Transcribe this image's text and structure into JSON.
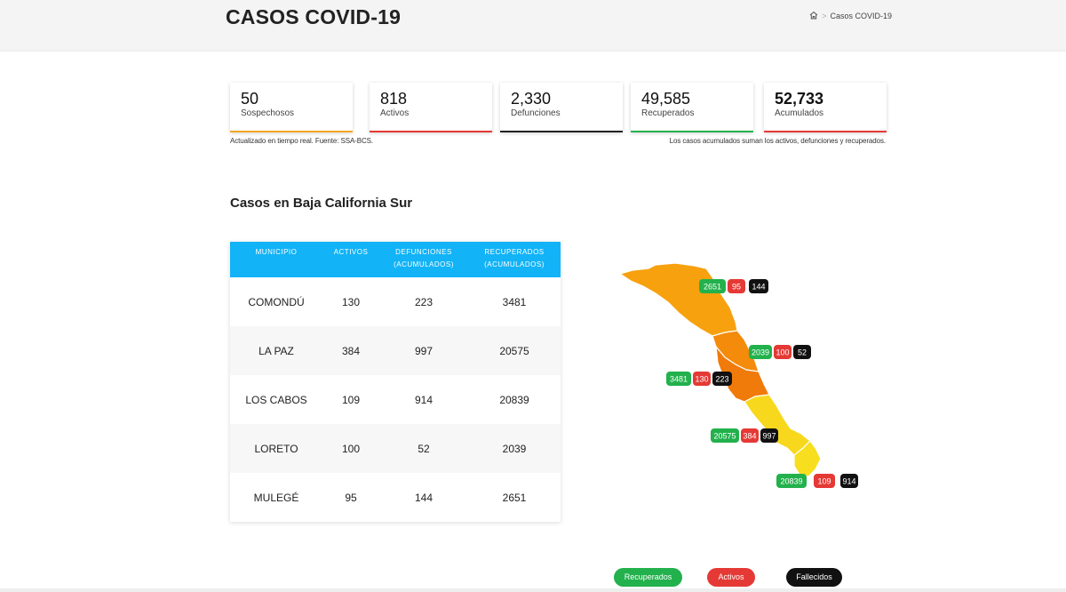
{
  "header": {
    "title": "CASOS COVID-19",
    "breadcrumb_current": "Casos COVID-19",
    "home_icon": "home-icon"
  },
  "stats": [
    {
      "value": "50",
      "label": "Sospechosos",
      "color": "#f5a623"
    },
    {
      "value": "818",
      "label": "Activos",
      "color": "#e53935"
    },
    {
      "value": "2,330",
      "label": "Defunciones",
      "color": "#222222"
    },
    {
      "value": "49,585",
      "label": "Recuperados",
      "color": "#22b14c"
    },
    {
      "value": "52,733",
      "label": "Acumulados",
      "color": "#e53935"
    }
  ],
  "notes": {
    "left": "Actualizado en tiempo real. Fuente: SSA-BCS.",
    "right": "Los casos acumulados suman los activos, defunciones y recuperados."
  },
  "section_title": "Casos en Baja California Sur",
  "table": {
    "headers": [
      {
        "line1": "MUNICIPIO",
        "line2": ""
      },
      {
        "line1": "ACTIVOS",
        "line2": ""
      },
      {
        "line1": "DEFUNCIONES",
        "line2": "(ACUMULADOS)"
      },
      {
        "line1": "RECUPERADOS",
        "line2": "(ACUMULADOS)"
      }
    ],
    "rows": [
      {
        "municipio": "COMONDÚ",
        "activos": "130",
        "defunciones": "223",
        "recuperados": "3481"
      },
      {
        "municipio": "LA PAZ",
        "activos": "384",
        "defunciones": "997",
        "recuperados": "20575"
      },
      {
        "municipio": "LOS CABOS",
        "activos": "109",
        "defunciones": "914",
        "recuperados": "20839"
      },
      {
        "municipio": "LORETO",
        "activos": "100",
        "defunciones": "52",
        "recuperados": "2039"
      },
      {
        "municipio": "MULEGÉ",
        "activos": "95",
        "defunciones": "144",
        "recuperados": "2651"
      }
    ]
  },
  "map_labels": {
    "mulege": {
      "recuperados": "2651",
      "activos": "95",
      "fallecidos": "144"
    },
    "loreto": {
      "recuperados": "2039",
      "activos": "100",
      "fallecidos": "52"
    },
    "comondu": {
      "recuperados": "3481",
      "activos": "130",
      "fallecidos": "223"
    },
    "lapaz": {
      "recuperados": "20575",
      "activos": "384",
      "fallecidos": "997"
    },
    "loscabos": {
      "recuperados": "20839",
      "activos": "109",
      "fallecidos": "914"
    }
  },
  "legend": {
    "recuperados": "Recuperados",
    "activos": "Activos",
    "fallecidos": "Fallecidos"
  },
  "colors": {
    "header_blue": "#12b3f7",
    "recuperados": "#22b14c",
    "activos": "#e53935",
    "fallecidos": "#111111",
    "map_orange": "#f59e0b",
    "map_dark_orange": "#f07d0a",
    "map_yellow": "#f7d81c"
  }
}
